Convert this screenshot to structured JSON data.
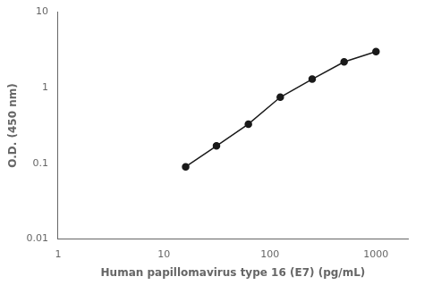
{
  "chart_data": {
    "type": "line",
    "x": [
      16,
      31.25,
      62.5,
      125,
      250,
      500,
      1000
    ],
    "values": [
      0.09,
      0.17,
      0.33,
      0.75,
      1.3,
      2.2,
      3.0
    ],
    "xlabel": "Human papillomavirus type 16 (E7) (pg/mL)",
    "ylabel": "O.D. (450 nm)",
    "xlim": [
      1,
      2000
    ],
    "ylim": [
      0.01,
      10
    ],
    "xticks": [
      1,
      10,
      100,
      1000
    ],
    "yticks": [
      0.01,
      0.1,
      1,
      10
    ],
    "log": true,
    "grid": false,
    "color": "#1a1a1a",
    "marker": "circle"
  }
}
